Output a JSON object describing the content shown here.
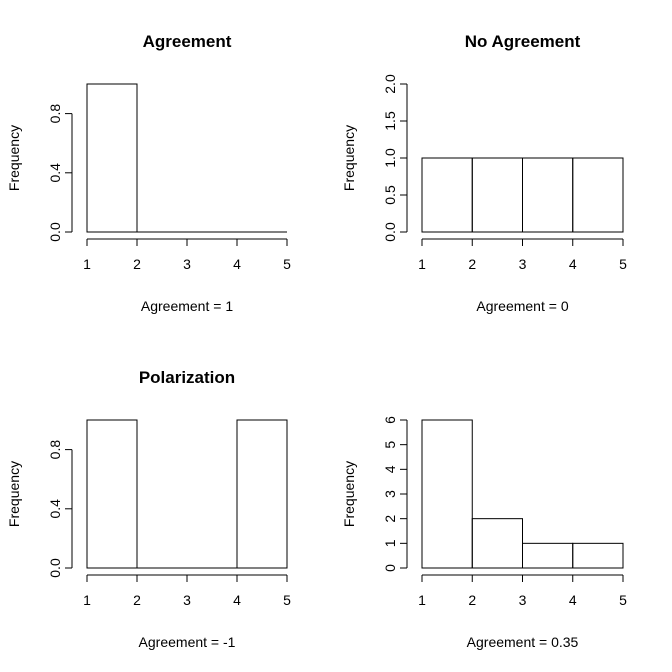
{
  "chart_data": [
    {
      "type": "bar",
      "title": "Agreement",
      "xlabel": "Agreement = 1",
      "ylabel": "Frequency",
      "bins": [
        [
          1,
          2
        ],
        [
          2,
          3
        ],
        [
          3,
          4
        ],
        [
          4,
          5
        ]
      ],
      "values": [
        1,
        0,
        0,
        0
      ],
      "xlim": [
        1,
        5
      ],
      "ylim": [
        0,
        1
      ],
      "xticks": [
        "1",
        "2",
        "3",
        "4",
        "5"
      ],
      "yticks": [
        "0.0",
        "0.4",
        "0.8"
      ],
      "grid": false
    },
    {
      "type": "bar",
      "title": "No Agreement",
      "xlabel": "Agreement = 0",
      "ylabel": "Frequency",
      "bins": [
        [
          1,
          2
        ],
        [
          2,
          3
        ],
        [
          3,
          4
        ],
        [
          4,
          5
        ]
      ],
      "values": [
        1,
        1,
        1,
        1
      ],
      "xlim": [
        1,
        5
      ],
      "ylim": [
        0,
        2
      ],
      "xticks": [
        "1",
        "2",
        "3",
        "4",
        "5"
      ],
      "yticks": [
        "0.0",
        "0.5",
        "1.0",
        "1.5",
        "2.0"
      ],
      "grid": false
    },
    {
      "type": "bar",
      "title": "Polarization",
      "xlabel": "Agreement = -1",
      "ylabel": "Frequency",
      "bins": [
        [
          1,
          2
        ],
        [
          2,
          3
        ],
        [
          3,
          4
        ],
        [
          4,
          5
        ]
      ],
      "values": [
        1,
        0,
        0,
        1
      ],
      "xlim": [
        1,
        5
      ],
      "ylim": [
        0,
        1
      ],
      "xticks": [
        "1",
        "2",
        "3",
        "4",
        "5"
      ],
      "yticks": [
        "0.0",
        "0.4",
        "0.8"
      ],
      "grid": false
    },
    {
      "type": "bar",
      "title": "",
      "xlabel": "Agreement = 0.35",
      "ylabel": "Frequency",
      "bins": [
        [
          1,
          2
        ],
        [
          2,
          3
        ],
        [
          3,
          4
        ],
        [
          4,
          5
        ]
      ],
      "values": [
        6,
        2,
        1,
        1
      ],
      "xlim": [
        1,
        5
      ],
      "ylim": [
        0,
        6
      ],
      "xticks": [
        "1",
        "2",
        "3",
        "4",
        "5"
      ],
      "yticks": [
        "0",
        "1",
        "2",
        "3",
        "4",
        "5",
        "6"
      ],
      "grid": false
    }
  ]
}
